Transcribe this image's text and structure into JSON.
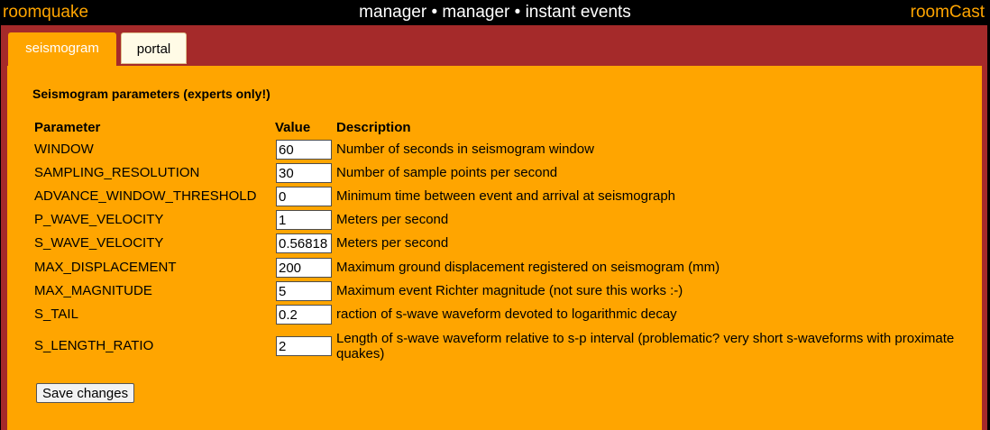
{
  "header": {
    "brand_left": "roomquake",
    "title": "manager • manager • instant events",
    "brand_right": "roomCast"
  },
  "tabs": [
    {
      "label": "seismogram",
      "active": true
    },
    {
      "label": "portal",
      "active": false
    }
  ],
  "panel": {
    "title": "Seismogram parameters (experts only!)",
    "columns": {
      "parameter": "Parameter",
      "value": "Value",
      "description": "Description"
    },
    "rows": [
      {
        "name": "WINDOW",
        "value": "60",
        "description": "Number of seconds in seismogram window"
      },
      {
        "name": "SAMPLING_RESOLUTION",
        "value": "30",
        "description": "Number of sample points per second"
      },
      {
        "name": "ADVANCE_WINDOW_THRESHOLD",
        "value": "0",
        "description": "Minimum time between event and arrival at seismograph"
      },
      {
        "name": "P_WAVE_VELOCITY",
        "value": "1",
        "description": "Meters per second"
      },
      {
        "name": "S_WAVE_VELOCITY",
        "value": "0.56818",
        "description": "Meters per second"
      },
      {
        "name": "MAX_DISPLACEMENT",
        "value": "200",
        "description": "Maximum ground displacement registered on seismogram (mm)"
      },
      {
        "name": "MAX_MAGNITUDE",
        "value": "5",
        "description": "Maximum event Richter magnitude (not sure this works :-)"
      },
      {
        "name": "S_TAIL",
        "value": "0.2",
        "description": "raction of s-wave waveform devoted to logarithmic decay"
      },
      {
        "name": "S_LENGTH_RATIO",
        "value": "2",
        "description": "Length of s-wave waveform relative to s-p interval (problematic? very short s-waveforms with proximate quakes)"
      }
    ],
    "save_label": "Save changes"
  },
  "colors": {
    "accent": "#ffa500",
    "frame": "#a52a2a",
    "topbar": "#000000"
  }
}
